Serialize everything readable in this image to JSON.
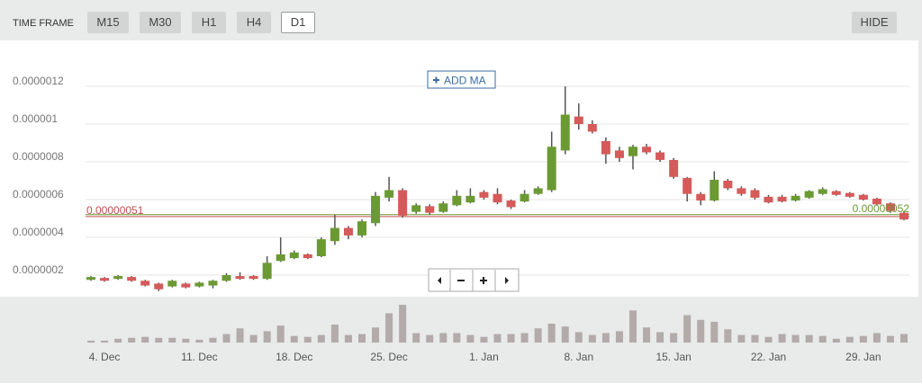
{
  "toolbar": {
    "label": "TIME FRAME",
    "buttons": [
      "M15",
      "M30",
      "H1",
      "H4",
      "D1"
    ],
    "hide": "HIDE"
  },
  "chart_data": {
    "type": "candlestick",
    "add_ma": "ADD MA",
    "categories": [
      null,
      "4. Dec",
      null,
      null,
      null,
      null,
      null,
      null,
      "11. Dec",
      null,
      null,
      null,
      null,
      null,
      null,
      "18. Dec",
      null,
      null,
      null,
      null,
      null,
      null,
      "25. Dec",
      null,
      null,
      null,
      null,
      null,
      null,
      "1. Jan",
      null,
      null,
      null,
      null,
      null,
      null,
      "8. Jan",
      null,
      null,
      null,
      null,
      null,
      null,
      "15. Jan",
      null,
      null,
      null,
      null,
      null,
      null,
      "22. Jan",
      null,
      null,
      null,
      null,
      null,
      null,
      "29. Jan",
      null,
      null,
      null
    ],
    "open": [
      1.75e-07,
      1.85e-07,
      1.8e-07,
      1.9e-07,
      1.7e-07,
      1.55e-07,
      1.4e-07,
      1.55e-07,
      1.4e-07,
      1.45e-07,
      1.7e-07,
      1.95e-07,
      1.95e-07,
      1.8e-07,
      2.75e-07,
      2.9e-07,
      3.1e-07,
      3e-07,
      3.8e-07,
      4.5e-07,
      4.1e-07,
      4.75e-07,
      6.1e-07,
      6.5e-07,
      5.35e-07,
      5.65e-07,
      5.35e-07,
      5.7e-07,
      5.85e-07,
      6.4e-07,
      6.3e-07,
      5.95e-07,
      5.9e-07,
      6.3e-07,
      6.5e-07,
      8.6e-07,
      1.04e-06,
      1e-06,
      9.1e-07,
      8.6e-07,
      8.3e-07,
      8.8e-07,
      8.5e-07,
      8.1e-07,
      7.15e-07,
      6.3e-07,
      5.95e-07,
      7e-07,
      6.6e-07,
      6.5e-07,
      6.15e-07,
      6.15e-07,
      5.95e-07,
      6.1e-07,
      6.3e-07,
      6.45e-07,
      6.35e-07,
      6.25e-07,
      6.05e-07,
      5.8e-07,
      5.3e-07
    ],
    "high": [
      1.95e-07,
      1.9e-07,
      2e-07,
      1.95e-07,
      1.75e-07,
      1.6e-07,
      1.75e-07,
      1.6e-07,
      1.65e-07,
      1.75e-07,
      2.1e-07,
      2.15e-07,
      2e-07,
      3e-07,
      4e-07,
      3.3e-07,
      3.15e-07,
      4e-07,
      5.2e-07,
      4.6e-07,
      4.95e-07,
      6.4e-07,
      7.2e-07,
      6.6e-07,
      5.8e-07,
      5.75e-07,
      5.9e-07,
      6.5e-07,
      6.6e-07,
      6.5e-07,
      6.6e-07,
      6e-07,
      6.5e-07,
      6.7e-07,
      9.6e-07,
      1.2e-06,
      1.11e-06,
      1.02e-06,
      9.3e-07,
      8.8e-07,
      8.9e-07,
      8.95e-07,
      8.6e-07,
      8.2e-07,
      7.2e-07,
      6.4e-07,
      7.5e-07,
      7.1e-07,
      6.7e-07,
      6.6e-07,
      6.25e-07,
      6.25e-07,
      6.3e-07,
      6.5e-07,
      6.65e-07,
      6.5e-07,
      6.4e-07,
      6.3e-07,
      6.1e-07,
      5.85e-07,
      5.4e-07
    ],
    "low": [
      1.7e-07,
      1.65e-07,
      1.75e-07,
      1.65e-07,
      1.4e-07,
      1.15e-07,
      1.35e-07,
      1.3e-07,
      1.35e-07,
      1.3e-07,
      1.65e-07,
      1.75e-07,
      1.75e-07,
      1.75e-07,
      2.7e-07,
      2.85e-07,
      2.85e-07,
      2.95e-07,
      3.6e-07,
      3.9e-07,
      4e-07,
      4.6e-07,
      5.9e-07,
      5.05e-07,
      5.25e-07,
      5.2e-07,
      5.3e-07,
      5.65e-07,
      5.8e-07,
      6e-07,
      5.75e-07,
      5.5e-07,
      5.85e-07,
      6.25e-07,
      6.4e-07,
      8.4e-07,
      9.7e-07,
      9.5e-07,
      7.9e-07,
      8e-07,
      7.6e-07,
      8.4e-07,
      8e-07,
      7.1e-07,
      5.9e-07,
      5.7e-07,
      5.9e-07,
      6.5e-07,
      6.2e-07,
      6e-07,
      5.8e-07,
      5.85e-07,
      5.9e-07,
      6.05e-07,
      6.25e-07,
      6.2e-07,
      6.1e-07,
      5.95e-07,
      5.7e-07,
      5.3e-07,
      4.9e-07
    ],
    "close": [
      1.9e-07,
      1.7e-07,
      1.95e-07,
      1.7e-07,
      1.45e-07,
      1.25e-07,
      1.7e-07,
      1.35e-07,
      1.6e-07,
      1.7e-07,
      2e-07,
      1.8e-07,
      1.8e-07,
      2.65e-07,
      3.1e-07,
      3.2e-07,
      2.9e-07,
      3.9e-07,
      4.5e-07,
      4.1e-07,
      4.85e-07,
      6.2e-07,
      6.5e-07,
      5.15e-07,
      5.7e-07,
      5.3e-07,
      5.8e-07,
      6.2e-07,
      6.2e-07,
      6.1e-07,
      5.85e-07,
      5.6e-07,
      6.3e-07,
      6.6e-07,
      8.8e-07,
      1.05e-06,
      1e-06,
      9.6e-07,
      8.4e-07,
      8.2e-07,
      8.8e-07,
      8.5e-07,
      8.1e-07,
      7.2e-07,
      6.3e-07,
      5.95e-07,
      7.05e-07,
      6.6e-07,
      6.3e-07,
      6.1e-07,
      5.85e-07,
      5.9e-07,
      6.2e-07,
      6.45e-07,
      6.55e-07,
      6.25e-07,
      6.15e-07,
      6e-07,
      5.75e-07,
      5.4e-07,
      4.95e-07
    ],
    "volume": [
      2,
      2,
      4,
      5,
      6,
      5,
      5,
      4,
      3,
      5,
      9,
      15,
      8,
      12,
      18,
      7,
      6,
      8,
      19,
      8,
      9,
      16,
      31,
      40,
      10,
      8,
      10,
      10,
      8,
      6,
      9,
      9,
      10,
      15,
      20,
      17,
      11,
      8,
      10,
      12,
      34,
      16,
      11,
      10,
      29,
      24,
      22,
      14,
      8,
      8,
      6,
      9,
      8,
      8,
      7,
      4,
      6,
      7,
      10,
      7,
      9
    ],
    "up_color": "#6b9a33",
    "down_color": "#d65a5a",
    "wick_color": "#555555",
    "volume_color": "#b3aaaa",
    "ylim": [
      1e-07,
      1.4e-06
    ],
    "yticks": [
      {
        "value": 2e-07,
        "label": "0.0000002"
      },
      {
        "value": 4e-07,
        "label": "0.0000004"
      },
      {
        "value": 6e-07,
        "label": "0.0000006"
      },
      {
        "value": 8e-07,
        "label": "0.0000008"
      },
      {
        "value": 1e-06,
        "label": "0.000001"
      },
      {
        "value": 1.2e-06,
        "label": "0.0000012"
      }
    ],
    "grid": true,
    "lines": [
      {
        "value": 5.1e-07,
        "label": "0.00000051",
        "color": "#c0504d",
        "side": "left"
      },
      {
        "value": 5.2e-07,
        "label": "0.00000052",
        "color": "#6b9a33",
        "side": "right"
      }
    ]
  }
}
